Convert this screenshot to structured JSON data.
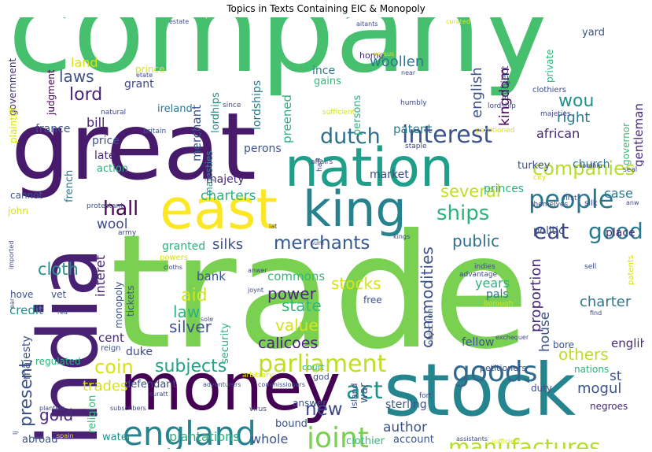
{
  "title": "Topics in Texts Containing EIC & Monopoly",
  "colors": {
    "dark_purple": "#440154",
    "purple": "#472d7b",
    "blue": "#3b528b",
    "teal": "#2c728e",
    "teal2": "#21918c",
    "green_teal": "#28ae80",
    "green": "#5ec962",
    "light_green": "#addc30",
    "yellow": "#fde725"
  },
  "words": {
    "company": "company",
    "trade": "trade",
    "great": "great",
    "india": "india",
    "nation": "nation",
    "money": "money",
    "stock": "stock",
    "east": "east",
    "king": "king",
    "england": "england",
    "people": "people",
    "parliament": "parliament",
    "goods": "goods",
    "joint": "joint",
    "manufactures": "manufactures",
    "dutch": "dutch",
    "interest": "interest",
    "eat": "eat",
    "good": "good",
    "companies": "companies",
    "hall": "hall",
    "ships": "ships",
    "merchants": "merchants",
    "coin": "coin",
    "subjects": "subjects",
    "act": "act",
    "new": "new",
    "several": "several",
    "charters": "charters",
    "power": "power",
    "state": "state",
    "law": "law",
    "aid": "aid",
    "silver": "silver",
    "value": "value",
    "calicoes": "calicoes",
    "stocks": "stocks",
    "public": "public",
    "commodities": "commodities",
    "present": "present",
    "gold": "gold",
    "cloth": "cloth",
    "silks": "silks",
    "wool": "wool",
    "lord": "lord",
    "laws": "laws",
    "land": "land",
    "woollen": "woollen",
    "english": "english",
    "kingdom": "kingdom",
    "wou": "wou",
    "right": "right",
    "patent": "patent",
    "bill": "bill",
    "france": "france",
    "merchant": "merchant",
    "preened": "preened",
    "lordships": "lordships",
    "lordhips": "lordhips",
    "grant": "grant",
    "prince": "prince",
    "judgment": "judgment",
    "government": "government",
    "ince": "ince",
    "gains": "gains",
    "home": "home",
    "persons": "persons",
    "price": "price",
    "late": "late",
    "action": "action",
    "french": "french",
    "majesties": "majesties",
    "majety": "majety",
    "perons": "perons",
    "market": "market",
    "african": "african",
    "church": "church",
    "turkey": "turkey",
    "princes": "princes",
    "case": "case",
    "politic": "politic",
    "place": "place",
    "gentleman": "gentleman",
    "governor": "governor",
    "charter": "charter",
    "proportion": "proportion",
    "house": "house",
    "others": "others",
    "st": "st",
    "mogul": "mogul",
    "englih": "englih",
    "nations": "nations",
    "bore": "bore",
    "duty": "duty",
    "negroes": "negroes",
    "years": "years",
    "pals": "pals",
    "war": "war",
    "fellow": "fellow",
    "author": "author",
    "whole": "whole",
    "bound": "bound",
    "plantations": "plantations",
    "water": "water",
    "clothier": "clothier",
    "account": "account",
    "abroad": "abroad",
    "religion": "religion",
    "trades": "trades",
    "defendant": "defendant",
    "duke": "duke",
    "cent": "cent",
    "interet": "interet",
    "commons": "commons",
    "bank": "bank",
    "granted": "granted",
    "security": "security",
    "monopoly": "monopoly",
    "tickets": "tickets",
    "credit": "credit",
    "hove": "hove",
    "vet": "vet",
    "majesty": "majesty",
    "regulated": "regulated",
    "john": "john",
    "cannot": "cannot",
    "ireland": "ireland",
    "yard": "yard",
    "private": "private",
    "subject": "subject",
    "clothiers": "clothiers",
    "majeties": "majeties",
    "lordship": "lordship",
    "sterling": "sterling",
    "answer": "answer",
    "island": "island",
    "god": "god",
    "court": "court",
    "petitioners": "petitioners",
    "free": "free",
    "objection": "objection",
    "reign": "reign",
    "plaintiff": "plaintiff",
    "imported": "imported",
    "protestant": "protestant",
    "army": "army",
    "powers": "powers",
    "cloths": "cloths",
    "britain": "britain",
    "natural": "natural",
    "since": "since",
    "sufficient": "sufficient",
    "humbly": "humbly",
    "partitioned": "partitioned",
    "staple": "staple",
    "affairs": "affairs",
    "half": "half",
    "city": "city",
    "first": "first",
    "themelves": "themelves",
    "silk": "silk",
    "lordhip": "lordhip",
    "seal": "seal",
    "anw": "anw",
    "kings": "kings",
    "sum": "sum",
    "lat": "lat",
    "indies": "indies",
    "advantage": "advantage",
    "sell": "sell",
    "patents": "patents",
    "find": "find",
    "borough": "borough",
    "exchequer": "exchequer",
    "fort": "fort",
    "commissioners": "commissioners",
    "adventurers": "adventurers",
    "arbitrary": "arbitrary",
    "joynt": "joynt",
    "anwer": "anwer",
    "sole": "sole",
    "rea": "rea",
    "ear": "ear",
    "suratt": "suratt",
    "subscribers": "subscribers",
    "planters": "planters",
    "virus": "virus",
    "lj": "lj",
    "spain": "spain",
    "assistants": "assistants",
    "sufficient2": "sufficient",
    "estate": "estate",
    "etate": "etate",
    "aitants": "aitants",
    "versus": "versus",
    "curated": "curated",
    "near": "near"
  }
}
